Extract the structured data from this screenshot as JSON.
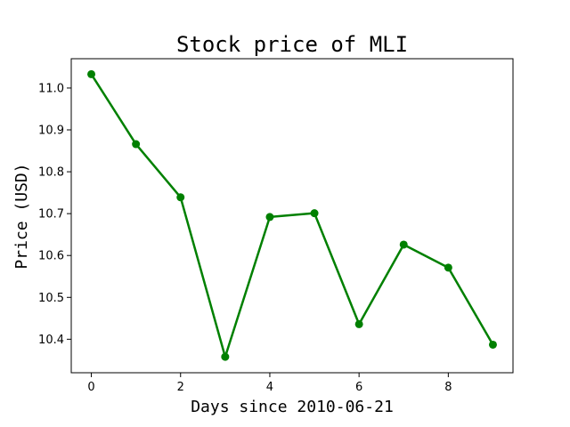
{
  "chart_data": {
    "type": "line",
    "title": "Stock price of MLI",
    "xlabel": "Days since 2010-06-21",
    "ylabel": "Price (USD)",
    "x": [
      0,
      1,
      2,
      3,
      4,
      5,
      6,
      7,
      8,
      9
    ],
    "series": [
      {
        "values": [
          11.033,
          10.866,
          10.739,
          10.358,
          10.692,
          10.701,
          10.436,
          10.626,
          10.571,
          10.387
        ]
      }
    ],
    "xlim": [
      -0.45,
      9.45
    ],
    "ylim": [
      10.32,
      11.07
    ],
    "xticks": [
      0,
      2,
      4,
      6,
      8
    ],
    "yticks": [
      10.4,
      10.5,
      10.6,
      10.7,
      10.8,
      10.9,
      11.0
    ],
    "ytick_labels": [
      "10.4",
      "10.5",
      "10.6",
      "10.7",
      "10.8",
      "10.9",
      "11.0"
    ],
    "grid": false,
    "line_color": "#008000",
    "marker": "circle"
  }
}
